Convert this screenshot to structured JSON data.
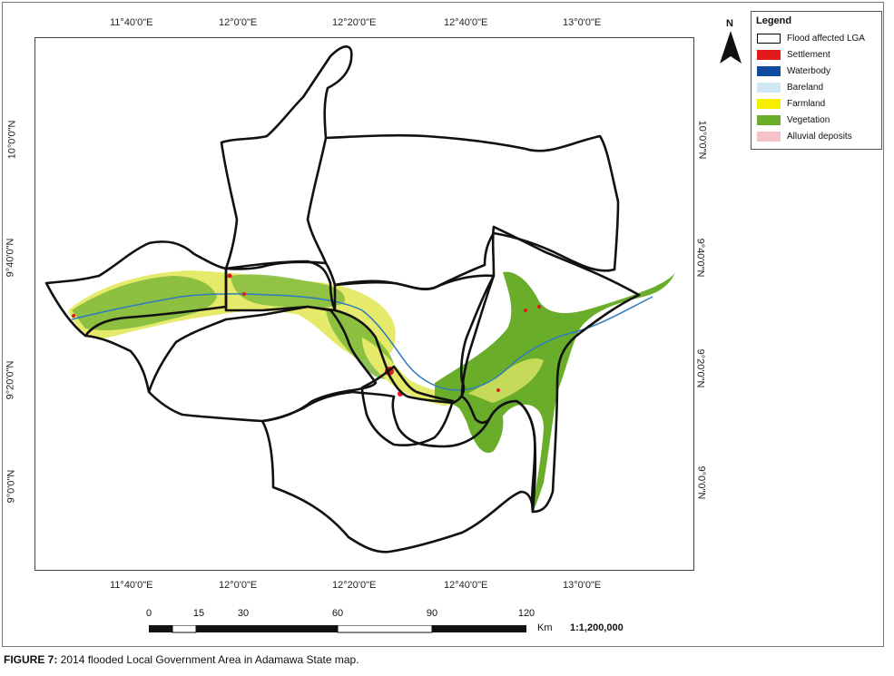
{
  "map": {
    "top_ticks": [
      "11°40'0\"E",
      "12°0'0\"E",
      "12°20'0\"E",
      "12°40'0\"E",
      "13°0'0\"E"
    ],
    "bottom_ticks": [
      "11°40'0\"E",
      "12°0'0\"E",
      "12°20'0\"E",
      "12°40'0\"E",
      "13°0'0\"E"
    ],
    "left_ticks": [
      "10°0'0\"N",
      "9°40'0\"N",
      "9°20'0\"N",
      "9°0'0\"N"
    ],
    "right_ticks": [
      "10°0'0\"N",
      "9°40'0\"N",
      "9°20'0\"N",
      "9°0'0\"N"
    ],
    "north_label": "N"
  },
  "legend": {
    "title": "Legend",
    "items": [
      {
        "label": "Flood affected LGA",
        "color": "#ffffff",
        "border": "#000000"
      },
      {
        "label": "Settlement",
        "color": "#e31a1c"
      },
      {
        "label": "Waterbody",
        "color": "#0d4aa0"
      },
      {
        "label": "Bareland",
        "color": "#cfe7f5"
      },
      {
        "label": "Farmland",
        "color": "#f5ee00"
      },
      {
        "label": "Vegetation",
        "color": "#6aad2a"
      },
      {
        "label": "Alluvial deposits",
        "color": "#f4c2c8"
      }
    ]
  },
  "scale_bar": {
    "labels": [
      "0",
      "15",
      "30",
      "60",
      "90",
      "120"
    ],
    "unit": "Km",
    "ratio": "1:1,200,000"
  },
  "caption": {
    "label": "FIGURE 7:",
    "text": " 2014 flooded Local Government Area in Adamawa State map."
  },
  "colors": {
    "boundary": "#111111",
    "vegetation": "#7cb83a",
    "farmland": "#eaec6a",
    "river": "#2f7bbf",
    "settlement": "#e31a1c"
  }
}
